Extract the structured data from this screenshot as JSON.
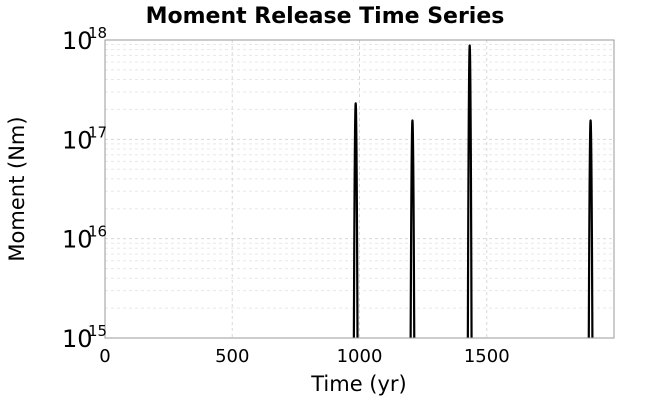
{
  "chart_data": {
    "type": "line",
    "title": "Moment Release Time Series",
    "xlabel": "Time (yr)",
    "ylabel": "Moment (Nm)",
    "xlim": [
      0,
      2000
    ],
    "ylim": [
      1000000000000000.0,
      1e+18
    ],
    "yscale": "log",
    "grid": true,
    "x_ticks": [
      {
        "value": 0,
        "label": "0"
      },
      {
        "value": 500,
        "label": "500"
      },
      {
        "value": 1000,
        "label": "1000"
      },
      {
        "value": 1500,
        "label": "1500"
      }
    ],
    "y_ticks": [
      {
        "value": 1000000000000000.0,
        "base": "10",
        "exp": "15"
      },
      {
        "value": 1e+16,
        "base": "10",
        "exp": "16"
      },
      {
        "value": 1e+17,
        "base": "10",
        "exp": "17"
      },
      {
        "value": 1e+18,
        "base": "10",
        "exp": "18"
      }
    ],
    "color": "#000000",
    "events": [
      {
        "time": 985,
        "peak": 2.3e+17,
        "halfwidth": 8
      },
      {
        "time": 1208,
        "peak": 1.55e+17,
        "halfwidth": 8
      },
      {
        "time": 1433,
        "peak": 8.8e+17,
        "halfwidth": 8
      },
      {
        "time": 1908,
        "peak": 1.55e+17,
        "halfwidth": 8
      }
    ]
  }
}
